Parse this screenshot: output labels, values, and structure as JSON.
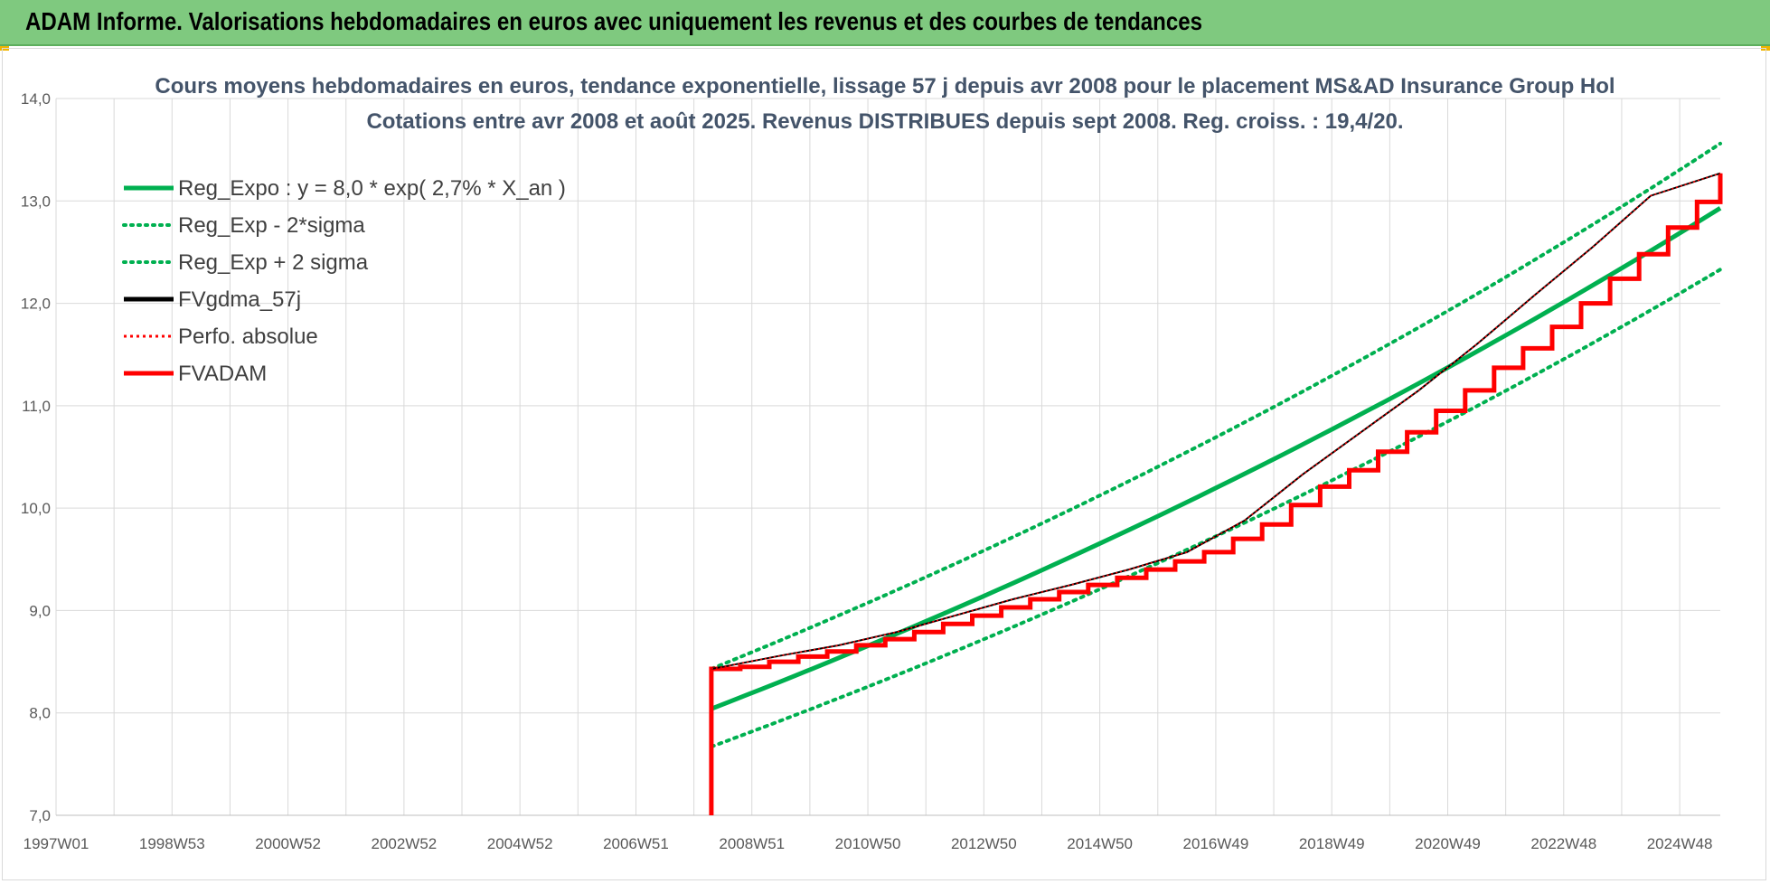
{
  "header": {
    "title": "ADAM Informe. Valorisations hebdomadaires en euros avec uniquement les revenus et des courbes de tendances"
  },
  "colors": {
    "header_bg": "#7fc97f",
    "green": "#00b050",
    "black": "#000000",
    "red": "#ff0000",
    "grid": "#d9d9d9",
    "title": "#44546a"
  },
  "chart_data": {
    "type": "line",
    "title": "Cours moyens hebdomadaires en euros, tendance exponentielle, lissage 57 j depuis avr 2008 pour le placement MS&AD Insurance Group Hol",
    "subtitle": "Cotations entre avr 2008 et août 2025. Revenus DISTRIBUES depuis sept 2008. Reg. croiss. : 19,4/20.",
    "xlabel": "",
    "ylabel": "",
    "ylim": [
      7.0,
      14.0
    ],
    "xlim": [
      1997.0,
      2025.7
    ],
    "grid": true,
    "legend_position": "top-left",
    "y_ticks": [
      "7,0",
      "8,0",
      "9,0",
      "10,0",
      "11,0",
      "12,0",
      "13,0",
      "14,0"
    ],
    "x_ticks": [
      {
        "label": "1997W01",
        "x": 1997.0
      },
      {
        "label": "1998W53",
        "x": 1999.0
      },
      {
        "label": "2000W52",
        "x": 2001.0
      },
      {
        "label": "2002W52",
        "x": 2003.0
      },
      {
        "label": "2004W52",
        "x": 2005.0
      },
      {
        "label": "2006W51",
        "x": 2007.0
      },
      {
        "label": "2008W51",
        "x": 2009.0
      },
      {
        "label": "2010W50",
        "x": 2011.0
      },
      {
        "label": "2012W50",
        "x": 2013.0
      },
      {
        "label": "2014W50",
        "x": 2015.0
      },
      {
        "label": "2016W49",
        "x": 2017.0
      },
      {
        "label": "2018W49",
        "x": 2019.0
      },
      {
        "label": "2020W49",
        "x": 2021.0
      },
      {
        "label": "2022W48",
        "x": 2023.0
      },
      {
        "label": "2024W48",
        "x": 2025.0
      }
    ],
    "series": [
      {
        "name": "Reg_Expo : y = 8,0 * exp( 2,7% *  X_an )",
        "color": "#00b050",
        "style": "solid",
        "x": [
          2008.3,
          2025.7
        ],
        "y": [
          8.04,
          12.93
        ],
        "curve": "exponential"
      },
      {
        "name": "Reg_Exp - 2*sigma",
        "color": "#00b050",
        "style": "dotted",
        "x": [
          2008.3,
          2025.7
        ],
        "y": [
          7.67,
          12.33
        ],
        "curve": "exponential"
      },
      {
        "name": "Reg_Exp + 2 sigma",
        "color": "#00b050",
        "style": "dotted",
        "x": [
          2008.3,
          2025.7
        ],
        "y": [
          8.43,
          13.56
        ],
        "curve": "exponential"
      },
      {
        "name": "FVgdma_57j",
        "color": "#000000",
        "style": "solid",
        "x": [
          2008.3,
          2008.5,
          2009.5,
          2010.5,
          2011.5,
          2012.5,
          2013.5,
          2014.5,
          2015.5,
          2016.5,
          2017.5,
          2018.5,
          2019.5,
          2020.5,
          2021.5,
          2022.5,
          2023.5,
          2024.5,
          2025.7
        ],
        "y": [
          8.43,
          8.45,
          8.56,
          8.66,
          8.79,
          8.95,
          9.11,
          9.25,
          9.4,
          9.57,
          9.88,
          10.33,
          10.74,
          11.15,
          11.6,
          12.08,
          12.55,
          13.05,
          13.27
        ]
      },
      {
        "name": "Perfo. absolue",
        "color": "#ff0000",
        "style": "dotted",
        "x": [
          2008.3,
          2008.5,
          2009.5,
          2010.5,
          2011.5,
          2012.5,
          2013.5,
          2014.5,
          2015.5,
          2016.5,
          2017.5,
          2018.5,
          2019.5,
          2020.5,
          2021.5,
          2022.5,
          2023.5,
          2024.5,
          2025.7
        ],
        "y": [
          8.43,
          8.45,
          8.56,
          8.66,
          8.79,
          8.95,
          9.11,
          9.25,
          9.4,
          9.57,
          9.88,
          10.33,
          10.74,
          11.15,
          11.6,
          12.08,
          12.55,
          13.05,
          13.27
        ]
      },
      {
        "name": "FVADAM",
        "color": "#ff0000",
        "style": "solid-thick",
        "step_start": 2008.3,
        "start_value": 7.0,
        "step_interval_years": 0.5,
        "end": 2025.7,
        "y": [
          8.43,
          8.45,
          8.5,
          8.55,
          8.6,
          8.66,
          8.72,
          8.79,
          8.87,
          8.95,
          9.03,
          9.11,
          9.18,
          9.25,
          9.32,
          9.4,
          9.48,
          9.57,
          9.7,
          9.84,
          10.03,
          10.21,
          10.37,
          10.55,
          10.74,
          10.95,
          11.15,
          11.37,
          11.56,
          11.77,
          12.0,
          12.24,
          12.48,
          12.74,
          12.99,
          13.13,
          13.27
        ]
      }
    ]
  }
}
